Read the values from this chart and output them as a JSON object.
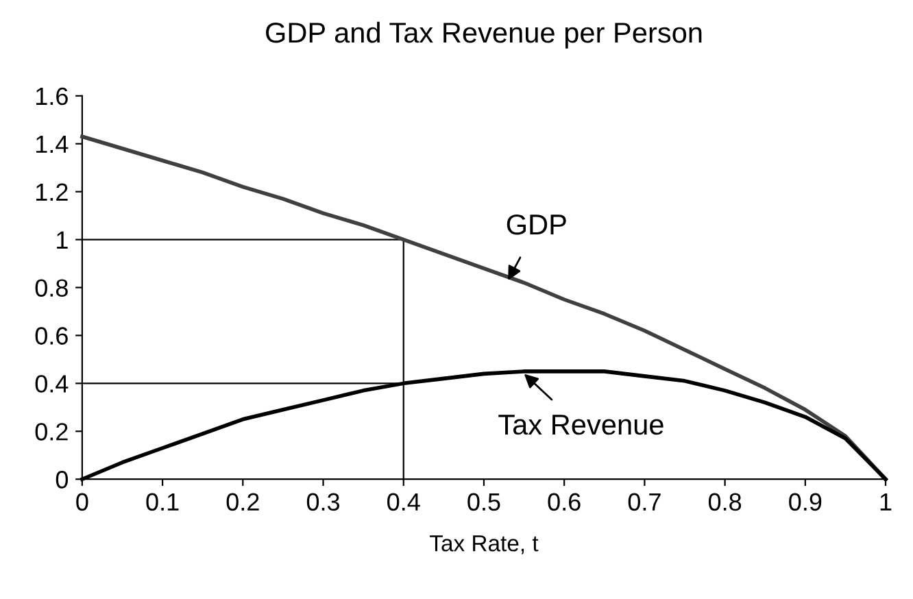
{
  "chart_data": {
    "type": "line",
    "title": "GDP and Tax Revenue per Person",
    "xlabel": "Tax Rate, t",
    "x": [
      0,
      0.05,
      0.1,
      0.15,
      0.2,
      0.25,
      0.3,
      0.35,
      0.4,
      0.45,
      0.5,
      0.55,
      0.6,
      0.65,
      0.7,
      0.75,
      0.8,
      0.85,
      0.9,
      0.95,
      1
    ],
    "series": [
      {
        "color": "#404040",
        "values": [
          1.43,
          1.38,
          1.33,
          1.28,
          1.22,
          1.17,
          1.11,
          1.06,
          1.0,
          0.94,
          0.88,
          0.82,
          0.75,
          0.69,
          0.62,
          0.54,
          0.46,
          0.38,
          0.29,
          0.18,
          0
        ]
      },
      {
        "color": "#000000",
        "values": [
          0,
          0.07,
          0.13,
          0.19,
          0.25,
          0.29,
          0.33,
          0.37,
          0.4,
          0.42,
          0.44,
          0.45,
          0.45,
          0.45,
          0.43,
          0.41,
          0.37,
          0.32,
          0.26,
          0.17,
          0
        ]
      }
    ],
    "ref_lines": [
      {
        "axis": "y",
        "value": 1.0,
        "color": "#000000"
      },
      {
        "axis": "y",
        "value": 0.4,
        "color": "#000000"
      },
      {
        "axis": "x",
        "value": 0.4,
        "color": "#000000"
      }
    ],
    "annotations": [
      {
        "text": "GDP",
        "x": 0.53,
        "y": 0.83
      },
      {
        "text": "Tax Revenue",
        "x": 0.55,
        "y": 0.44
      }
    ],
    "xlim": [
      0,
      1
    ],
    "xticks": [
      0,
      0.1,
      0.2,
      0.3,
      0.4,
      0.5,
      0.6,
      0.7,
      0.8,
      0.9,
      1
    ],
    "ylim": [
      0,
      1.6
    ],
    "yticks": [
      0,
      0.2,
      0.4,
      0.6,
      0.8,
      1,
      1.2,
      1.4,
      1.6
    ],
    "grid": false,
    "legend": false,
    "marker": "none",
    "line_style": "solid"
  }
}
